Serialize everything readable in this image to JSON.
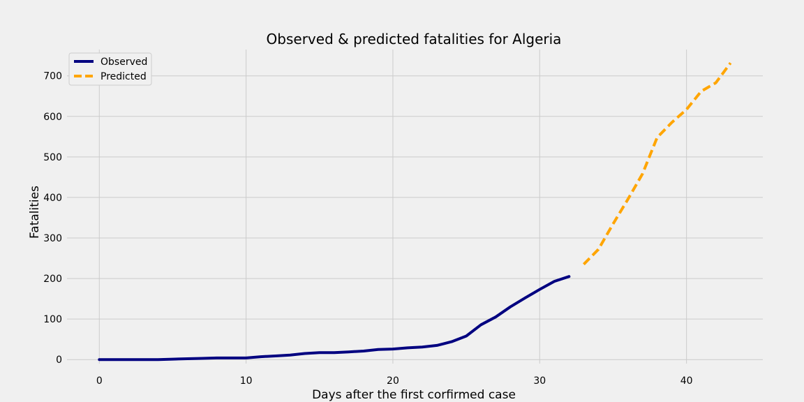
{
  "chart_data": {
    "type": "line",
    "title": "Observed & predicted fatalities for Algeria",
    "xlabel": "Days after the first corfirmed case",
    "ylabel": "Fatalities",
    "xlim": [
      -2.2,
      45.2
    ],
    "ylim": [
      -10,
      765
    ],
    "x_ticks": [
      0,
      10,
      20,
      30,
      40
    ],
    "y_ticks": [
      0,
      100,
      200,
      300,
      400,
      500,
      600,
      700
    ],
    "grid": true,
    "legend_position": "top-left",
    "series": [
      {
        "name": "Observed",
        "color": "#000080",
        "style": "solid",
        "x": [
          0,
          1,
          2,
          3,
          4,
          5,
          6,
          7,
          8,
          9,
          10,
          11,
          12,
          13,
          14,
          15,
          16,
          17,
          18,
          19,
          20,
          21,
          22,
          23,
          24,
          25,
          26,
          27,
          28,
          29,
          30,
          31,
          32
        ],
        "values": [
          0,
          0,
          0,
          0,
          0,
          1,
          2,
          3,
          4,
          4,
          4,
          7,
          9,
          11,
          15,
          17,
          17,
          19,
          21,
          25,
          26,
          29,
          31,
          35,
          44,
          58,
          86,
          105,
          130,
          152,
          173,
          193,
          205
        ]
      },
      {
        "name": "Predicted",
        "color": "#ffa500",
        "style": "dashed",
        "x": [
          33,
          34,
          35,
          36,
          37,
          38,
          39,
          40,
          41,
          42,
          43
        ],
        "values": [
          235,
          272,
          335,
          395,
          458,
          548,
          585,
          617,
          662,
          683,
          732
        ]
      }
    ]
  }
}
